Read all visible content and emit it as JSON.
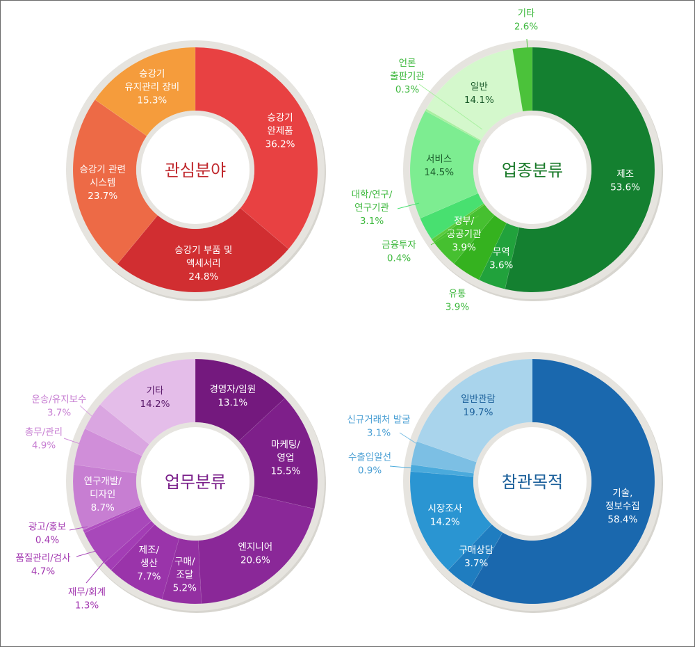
{
  "chart_data": [
    {
      "type": "pie",
      "title": "관심분야",
      "title_color": "#c0282d",
      "slices": [
        {
          "label": "승강기\n완제품",
          "value": 36.2,
          "value_label": "36.2%",
          "color": "#e84142",
          "text_color": "#ffffff",
          "label_style": "inside"
        },
        {
          "label": "승강기 부품 및\n액세서리",
          "value": 24.8,
          "value_label": "24.8%",
          "color": "#d12e31",
          "text_color": "#ffffff",
          "label_style": "inside"
        },
        {
          "label": "승강기 관련\n시스템",
          "value": 23.7,
          "value_label": "23.7%",
          "color": "#ed6a46",
          "text_color": "#ffffff",
          "label_style": "inside"
        },
        {
          "label": "승강기\n유지관리 장비",
          "value": 15.3,
          "value_label": "15.3%",
          "color": "#f59c3c",
          "text_color": "#ffffff",
          "label_style": "inside"
        }
      ]
    },
    {
      "type": "pie",
      "title": "업종분류",
      "title_color": "#1a7a2a",
      "slices": [
        {
          "label": "제조",
          "value": 53.6,
          "value_label": "53.6%",
          "color": "#148030",
          "text_color": "#ffffff",
          "label_style": "inside"
        },
        {
          "label": "무역",
          "value": 3.6,
          "value_label": "3.6%",
          "color": "#21a23c",
          "text_color": "#ffffff",
          "label_style": "inside"
        },
        {
          "label": "유통",
          "value": 3.9,
          "value_label": "3.9%",
          "color": "#35b21f",
          "text_color": "#3db83d",
          "label_style": "outside"
        },
        {
          "label": "정부/\n공공기관",
          "value": 3.9,
          "value_label": "3.9%",
          "color": "#46c030",
          "text_color": "#ffffff",
          "label_style": "inside"
        },
        {
          "label": "금융투자",
          "value": 0.4,
          "value_label": "0.4%",
          "color": "#5acb3c",
          "text_color": "#3db83d",
          "label_style": "outside"
        },
        {
          "label": "대학/연구/\n연구기관",
          "value": 3.1,
          "value_label": "3.1%",
          "color": "#48e070",
          "text_color": "#3db83d",
          "label_style": "outside"
        },
        {
          "label": "서비스",
          "value": 14.5,
          "value_label": "14.5%",
          "color": "#7ded91",
          "text_color": "#1a5a2a",
          "label_style": "inside"
        },
        {
          "label": "언론\n출판기관",
          "value": 0.3,
          "value_label": "0.3%",
          "color": "#a8f0a0",
          "text_color": "#3db83d",
          "label_style": "outside"
        },
        {
          "label": "일반",
          "value": 14.1,
          "value_label": "14.1%",
          "color": "#d4f8cc",
          "text_color": "#1a5a2a",
          "label_style": "inside"
        },
        {
          "label": "기타",
          "value": 2.6,
          "value_label": "2.6%",
          "color": "#4bc23a",
          "text_color": "#3db83d",
          "label_style": "outside"
        }
      ]
    },
    {
      "type": "pie",
      "title": "업무분류",
      "title_color": "#7a1f8a",
      "slices": [
        {
          "label": "경영자/임원",
          "value": 13.1,
          "value_label": "13.1%",
          "color": "#74197e",
          "text_color": "#ffffff",
          "label_style": "inside"
        },
        {
          "label": "마케팅/\n영업",
          "value": 15.5,
          "value_label": "15.5%",
          "color": "#7e1f8a",
          "text_color": "#ffffff",
          "label_style": "inside"
        },
        {
          "label": "엔지니어",
          "value": 20.6,
          "value_label": "20.6%",
          "color": "#8a2898",
          "text_color": "#ffffff",
          "label_style": "inside"
        },
        {
          "label": "구매/\n조달",
          "value": 5.2,
          "value_label": "5.2%",
          "color": "#9430a2",
          "text_color": "#ffffff",
          "label_style": "inside"
        },
        {
          "label": "제조/\n생산",
          "value": 7.7,
          "value_label": "7.7%",
          "color": "#9a34aa",
          "text_color": "#ffffff",
          "label_style": "inside"
        },
        {
          "label": "재무/회계",
          "value": 1.3,
          "value_label": "1.3%",
          "color": "#a33db5",
          "text_color": "#a236b0",
          "label_style": "outside"
        },
        {
          "label": "품질관리/검사",
          "value": 4.7,
          "value_label": "4.7%",
          "color": "#a848ba",
          "text_color": "#a236b0",
          "label_style": "outside"
        },
        {
          "label": "광고/홍보",
          "value": 0.4,
          "value_label": "0.4%",
          "color": "#b04ec0",
          "text_color": "#a236b0",
          "label_style": "outside"
        },
        {
          "label": "연구개발/\n디자인",
          "value": 8.7,
          "value_label": "8.7%",
          "color": "#c77ed2",
          "text_color": "#ffffff",
          "label_style": "inside"
        },
        {
          "label": "총무/관리",
          "value": 4.9,
          "value_label": "4.9%",
          "color": "#d08ed9",
          "text_color": "#c77ed2",
          "label_style": "outside"
        },
        {
          "label": "운송/유지보수",
          "value": 3.7,
          "value_label": "3.7%",
          "color": "#daa6e1",
          "text_color": "#c77ed2",
          "label_style": "outside"
        },
        {
          "label": "기타",
          "value": 14.2,
          "value_label": "14.2%",
          "color": "#e4bde9",
          "text_color": "#5a1a6a",
          "label_style": "inside"
        }
      ]
    },
    {
      "type": "pie",
      "title": "참관목적",
      "title_color": "#1a5f9a",
      "slices": [
        {
          "label": "기술,\n정보수집",
          "value": 58.4,
          "value_label": "58.4%",
          "color": "#1a68ae",
          "text_color": "#ffffff",
          "label_style": "inside"
        },
        {
          "label": "구매상담",
          "value": 3.7,
          "value_label": "3.7%",
          "color": "#1f7dc0",
          "text_color": "#ffffff",
          "label_style": "inside"
        },
        {
          "label": "시장조사",
          "value": 14.2,
          "value_label": "14.2%",
          "color": "#2a95d2",
          "text_color": "#ffffff",
          "label_style": "inside"
        },
        {
          "label": "수출입알선",
          "value": 0.9,
          "value_label": "0.9%",
          "color": "#4aaadc",
          "text_color": "#4a9fd4",
          "label_style": "outside"
        },
        {
          "label": "신규거래처 발굴",
          "value": 3.1,
          "value_label": "3.1%",
          "color": "#7cbfe4",
          "text_color": "#4a9fd4",
          "label_style": "outside"
        },
        {
          "label": "일반관람",
          "value": 19.7,
          "value_label": "19.7%",
          "color": "#a9d4ec",
          "text_color": "#1a5f9a",
          "label_style": "inside"
        }
      ]
    }
  ]
}
